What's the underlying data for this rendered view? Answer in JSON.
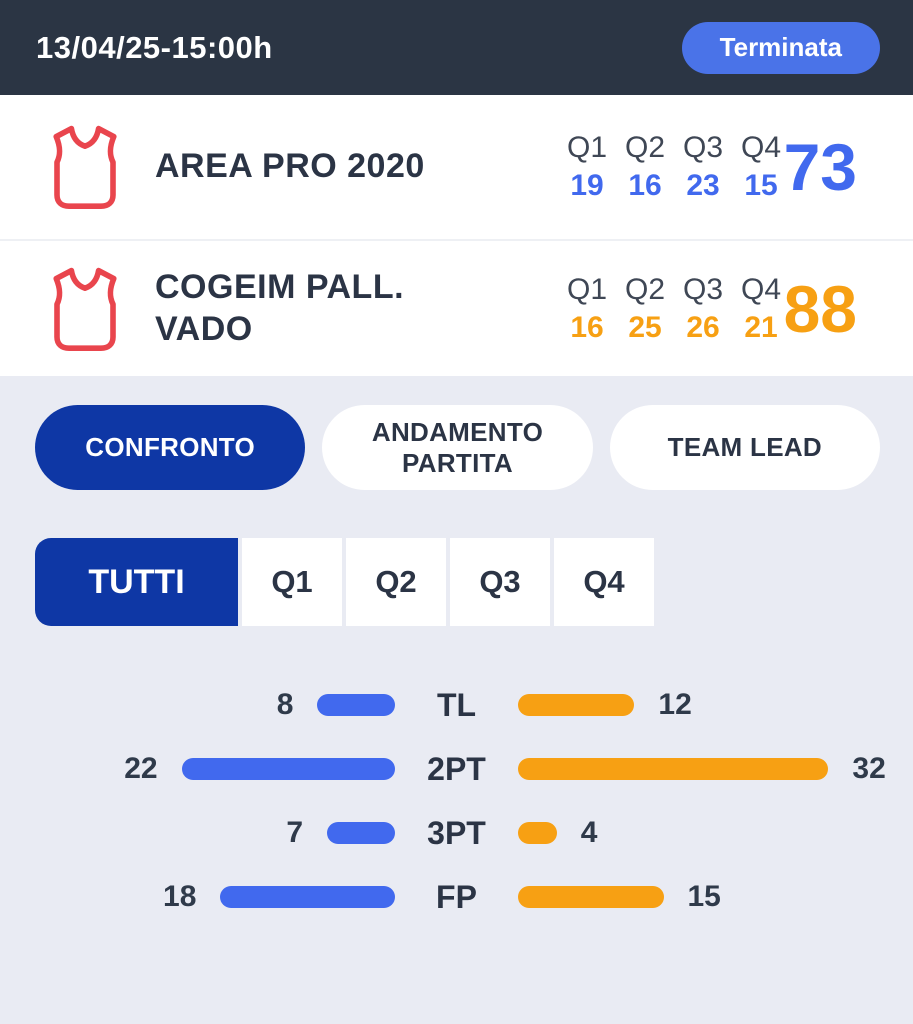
{
  "header": {
    "datetime": "13/04/25-15:00h",
    "status_button": "Terminata"
  },
  "scoreboard": {
    "quarter_labels": [
      "Q1",
      "Q2",
      "Q3",
      "Q4"
    ],
    "teams": [
      {
        "name": "AREA PRO 2020",
        "quarter_scores": [
          19,
          16,
          23,
          15
        ],
        "total": 73,
        "accent_color": "#4169ee"
      },
      {
        "name": "COGEIM PALL. VADO",
        "quarter_scores": [
          16,
          25,
          26,
          21
        ],
        "total": 88,
        "accent_color": "#f7a013"
      }
    ]
  },
  "view_tabs": [
    {
      "label": "CONFRONTO",
      "active": true
    },
    {
      "label": "ANDAMENTO PARTITA",
      "active": false
    },
    {
      "label": "TEAM LEAD",
      "active": false
    }
  ],
  "period_tabs": [
    {
      "label": "TUTTI",
      "active": true
    },
    {
      "label": "Q1",
      "active": false
    },
    {
      "label": "Q2",
      "active": false
    },
    {
      "label": "Q3",
      "active": false
    },
    {
      "label": "Q4",
      "active": false
    }
  ],
  "chart_data": {
    "type": "bar",
    "orientation": "horizontal-mirrored",
    "categories": [
      "TL",
      "2PT",
      "3PT",
      "FP"
    ],
    "series": [
      {
        "name": "AREA PRO 2020",
        "color": "#4169ee",
        "values": [
          8,
          22,
          7,
          18
        ]
      },
      {
        "name": "COGEIM PALL. VADO",
        "color": "#f7a013",
        "values": [
          12,
          32,
          4,
          15
        ]
      }
    ]
  },
  "colors": {
    "header_bg": "#2b3544",
    "status_button": "#4a73e8",
    "active_tab": "#0e37a5",
    "home_accent": "#4169ee",
    "away_accent": "#f7a013",
    "jersey_red": "#e9454d",
    "section_bg": "#e9ebf3"
  }
}
